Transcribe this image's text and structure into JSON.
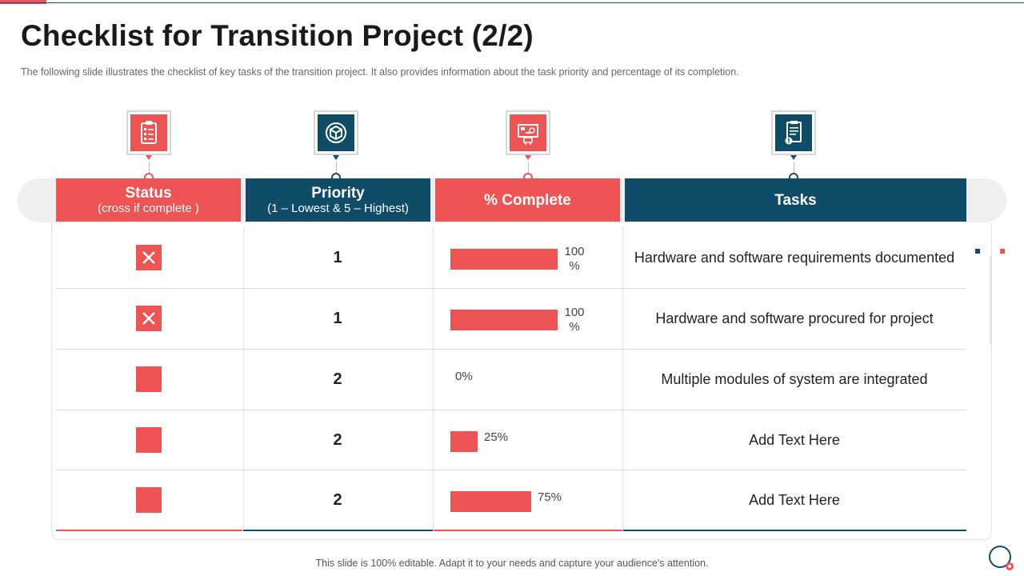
{
  "slide": {
    "title": "Checklist for Transition Project (2/2)",
    "subtitle": "The following  slide illustrates the checklist of key tasks of the transition project. It also provides  information  about the task priority and percentage  of its completion.",
    "footer": "This slide is 100% editable. Adapt it to your needs and capture your audience's attention."
  },
  "columns": [
    {
      "title": "Status",
      "subtitle": "(cross if complete )",
      "icon": "clipboard-checklist-icon",
      "color": "#ee5454"
    },
    {
      "title": "Priority",
      "subtitle": "(1 – Lowest & 5 – Highest)",
      "icon": "cube-network-icon",
      "color": "#0f4c67"
    },
    {
      "title": "% Complete",
      "subtitle": "",
      "icon": "dashboard-presentation-icon",
      "color": "#ee5454"
    },
    {
      "title": "Tasks",
      "subtitle": "",
      "icon": "document-alert-icon",
      "color": "#0f4c67"
    }
  ],
  "rows": [
    {
      "complete": true,
      "priority": "1",
      "percent": 100,
      "percent_label_top": "100",
      "percent_label_bottom": "%",
      "task": "Hardware and software requirements documented"
    },
    {
      "complete": true,
      "priority": "1",
      "percent": 100,
      "percent_label_top": "100",
      "percent_label_bottom": "%",
      "task": "Hardware and software procured for project"
    },
    {
      "complete": false,
      "priority": "2",
      "percent": 0,
      "percent_label_top": "0%",
      "percent_label_bottom": "",
      "task": "Multiple modules of system are integrated"
    },
    {
      "complete": false,
      "priority": "2",
      "percent": 25,
      "percent_label_top": "25%",
      "percent_label_bottom": "",
      "task": "Add Text Here"
    },
    {
      "complete": false,
      "priority": "2",
      "percent": 75,
      "percent_label_top": "75%",
      "percent_label_bottom": "",
      "task": "Add Text Here"
    }
  ],
  "colors": {
    "accent_red": "#ee5454",
    "accent_blue": "#0f4c67"
  }
}
